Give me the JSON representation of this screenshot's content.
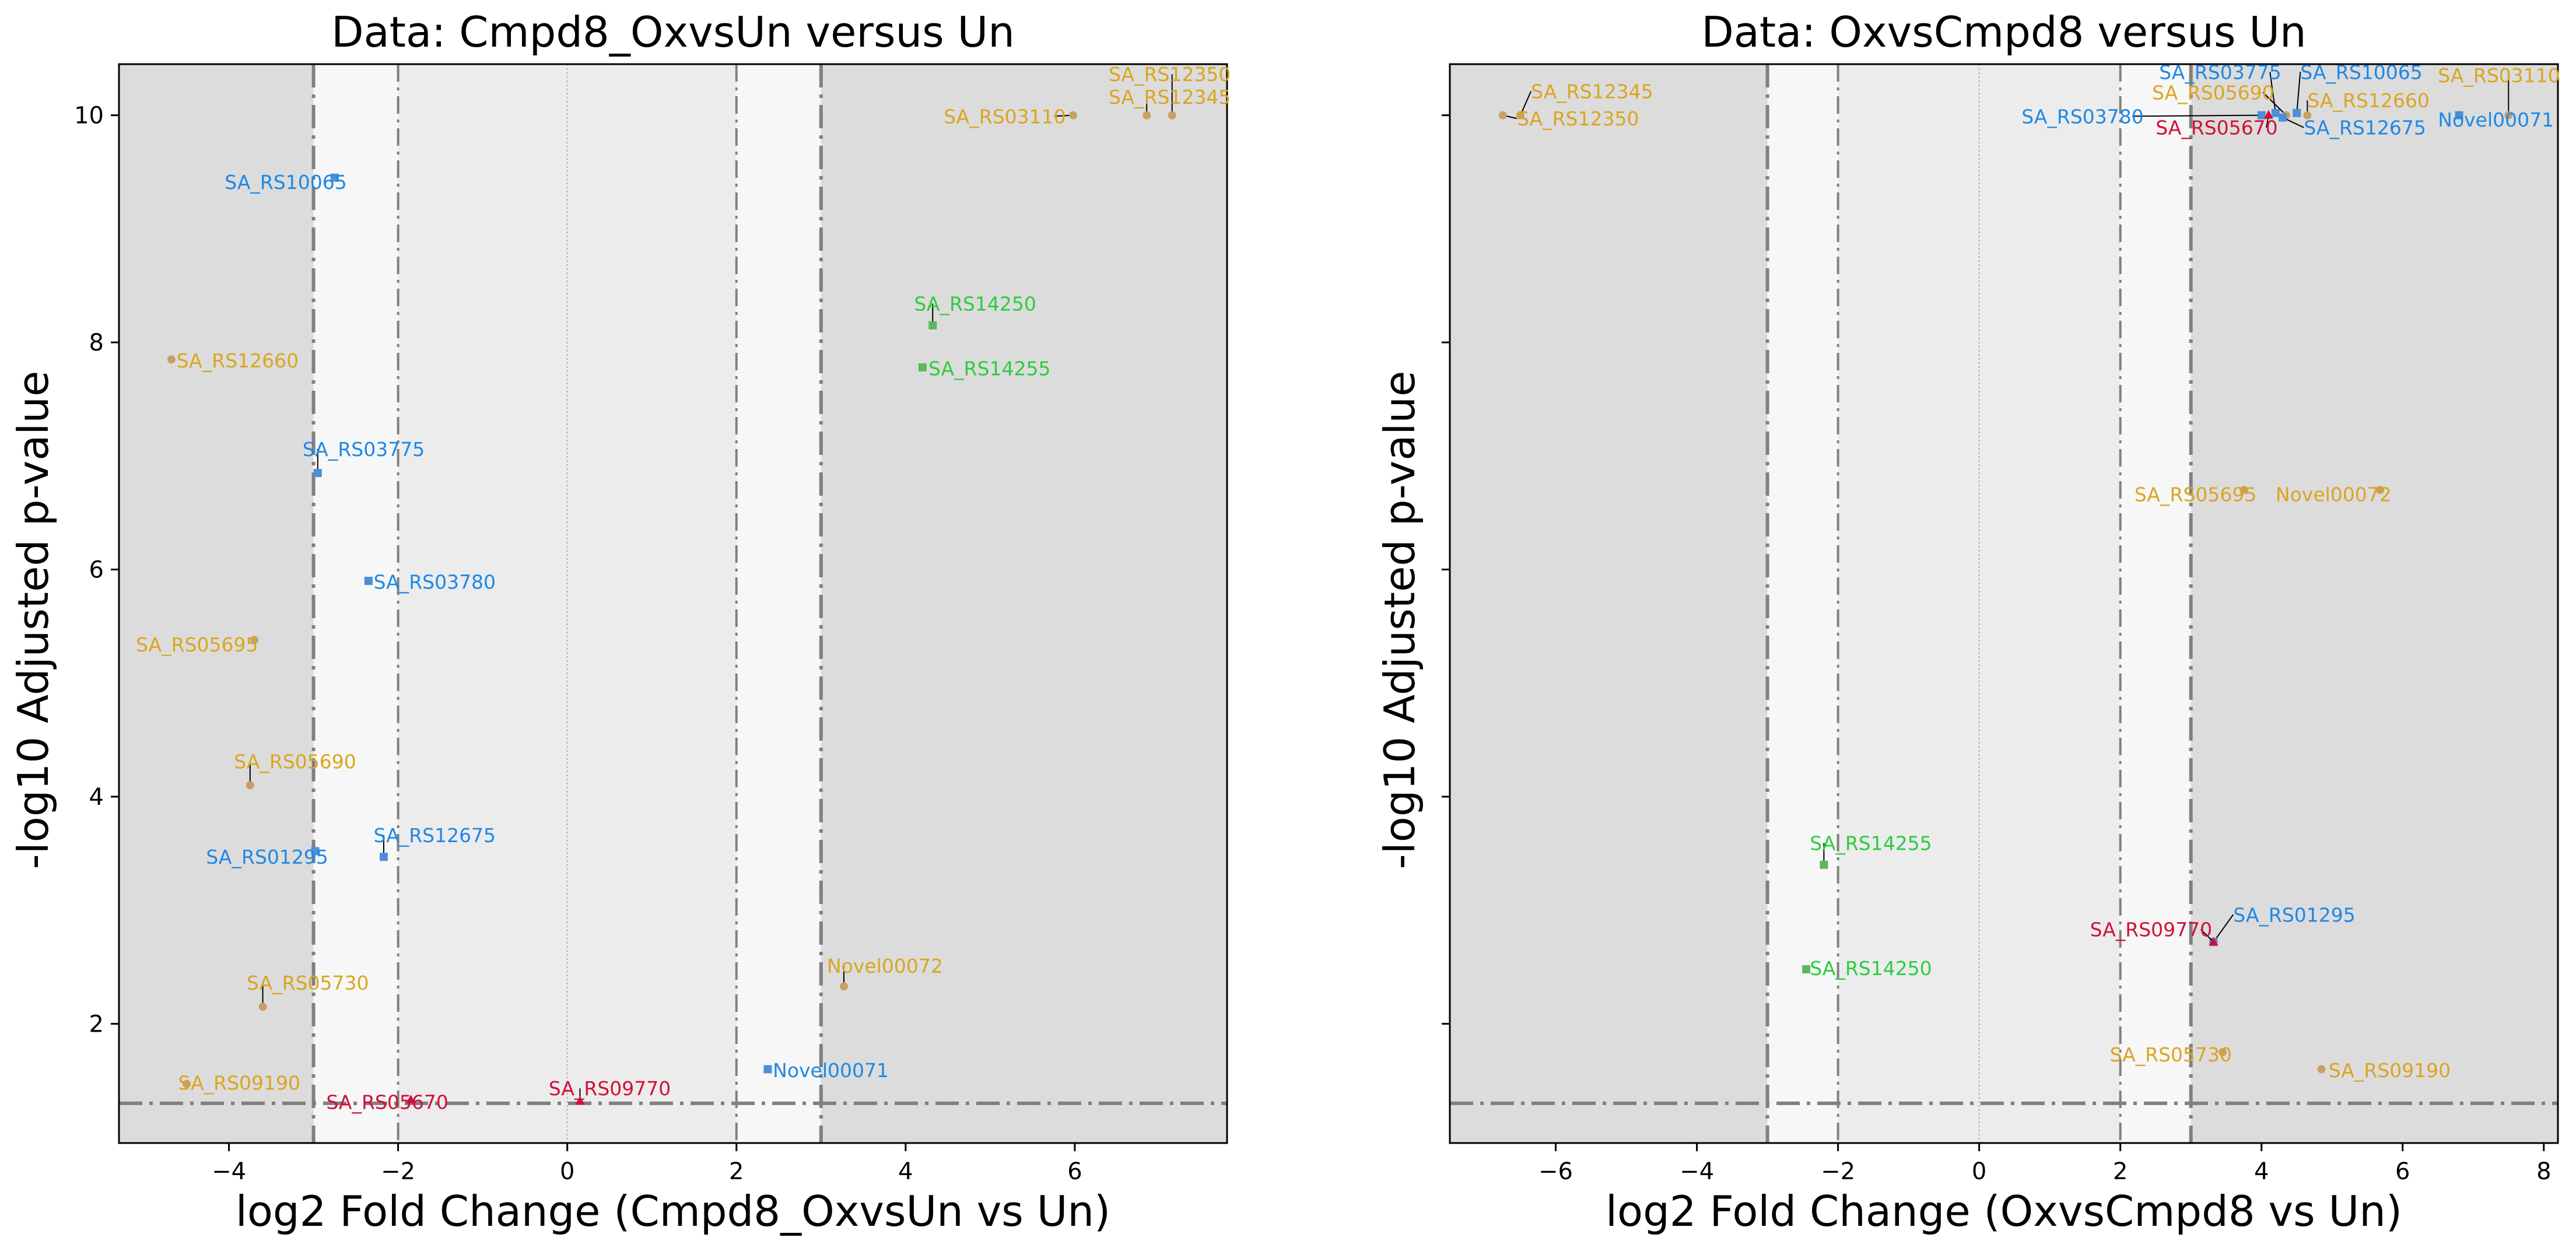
{
  "colors": {
    "outer_band": "#dcdcdc",
    "mid_band": "#f7f7f7",
    "inner_band": "#ececec",
    "threshold_line": "#808080",
    "zero_line": "#b0b0b0",
    "orange": "#DAA520",
    "orange_marker": "#C8A064",
    "blue": "#1E88E5",
    "blue_marker": "#4A90D9",
    "green": "#2ECC40",
    "green_marker": "#5CB85C",
    "red": "#D0103A"
  },
  "chart_data": [
    {
      "type": "scatter",
      "title": "Data: Cmpd8_OxvsUn versus Un",
      "xlabel": "log2 Fold Change (Cmpd8_OxvsUn vs Un)",
      "ylabel": "-log10 Adjusted p-value",
      "xlim": [
        -5.3,
        7.8
      ],
      "ylim": [
        0.95,
        10.45
      ],
      "xticks": [
        -4,
        -2,
        0,
        2,
        4,
        6
      ],
      "yticks": [
        2,
        4,
        6,
        8,
        10
      ],
      "show_ytick_labels": true,
      "vlines_outer": [
        -3,
        3
      ],
      "vlines_inner": [
        -2,
        2
      ],
      "hline": 1.3,
      "points": [
        {
          "label": "SA_RS12350",
          "x": 7.15,
          "y": 10.0,
          "color": "orange",
          "marker": "circle",
          "lx": 6.4,
          "ly": 10.3
        },
        {
          "label": "SA_RS12345",
          "x": 6.85,
          "y": 10.0,
          "color": "orange",
          "marker": "circle",
          "lx": 6.4,
          "ly": 10.1
        },
        {
          "label": "SA_RS03110",
          "x": 5.98,
          "y": 10.0,
          "color": "orange",
          "marker": "circle",
          "lx": 4.45,
          "ly": 9.93
        },
        {
          "label": "SA_RS10065",
          "x": -2.75,
          "y": 9.45,
          "color": "blue",
          "marker": "square",
          "lx": -4.05,
          "ly": 9.35
        },
        {
          "label": "SA_RS14250",
          "x": 4.32,
          "y": 8.15,
          "color": "green",
          "marker": "square",
          "lx": 4.1,
          "ly": 8.28
        },
        {
          "label": "SA_RS14255",
          "x": 4.2,
          "y": 7.78,
          "color": "green",
          "marker": "square",
          "lx": 4.27,
          "ly": 7.71
        },
        {
          "label": "SA_RS12660",
          "x": -4.68,
          "y": 7.85,
          "color": "orange",
          "marker": "circle",
          "lx": -4.62,
          "ly": 7.78
        },
        {
          "label": "SA_RS03775",
          "x": -2.95,
          "y": 6.85,
          "color": "blue",
          "marker": "square",
          "lx": -3.13,
          "ly": 7.0
        },
        {
          "label": "SA_RS03780",
          "x": -2.35,
          "y": 5.9,
          "color": "blue",
          "marker": "square",
          "lx": -2.29,
          "ly": 5.83
        },
        {
          "label": "SA_RS05695",
          "x": -3.7,
          "y": 5.38,
          "color": "orange",
          "marker": "circle",
          "lx": -5.1,
          "ly": 5.28
        },
        {
          "label": "SA_RS05690",
          "x": -3.75,
          "y": 4.1,
          "color": "orange",
          "marker": "circle",
          "lx": -3.94,
          "ly": 4.25
        },
        {
          "label": "SA_RS01295",
          "x": -2.98,
          "y": 3.52,
          "color": "blue",
          "marker": "square",
          "lx": -4.27,
          "ly": 3.41
        },
        {
          "label": "SA_RS12675",
          "x": -2.17,
          "y": 3.47,
          "color": "blue",
          "marker": "square",
          "lx": -2.29,
          "ly": 3.6
        },
        {
          "label": "Novel00072",
          "x": 3.27,
          "y": 2.33,
          "color": "orange",
          "marker": "circle",
          "lx": 3.07,
          "ly": 2.45
        },
        {
          "label": "SA_RS05730",
          "x": -3.6,
          "y": 2.15,
          "color": "orange",
          "marker": "circle",
          "lx": -3.79,
          "ly": 2.3
        },
        {
          "label": "Novel00071",
          "x": 2.37,
          "y": 1.6,
          "color": "blue",
          "marker": "square",
          "lx": 2.43,
          "ly": 1.53
        },
        {
          "label": "SA_RS09190",
          "x": -4.5,
          "y": 1.47,
          "color": "orange",
          "marker": "circle",
          "lx": -4.6,
          "ly": 1.42
        },
        {
          "label": "SA_RS09770",
          "x": 0.15,
          "y": 1.32,
          "color": "red",
          "marker": "triangle",
          "lx": -0.22,
          "ly": 1.37
        },
        {
          "label": "SA_RS05670",
          "x": -1.85,
          "y": 1.33,
          "color": "red",
          "marker": "triangle",
          "lx": -2.85,
          "ly": 1.25
        }
      ]
    },
    {
      "type": "scatter",
      "title": "Data: OxvsCmpd8 versus Un",
      "xlabel": "log2 Fold Change (OxvsCmpd8 vs Un)",
      "ylabel": "-log10 Adjusted p-value",
      "xlim": [
        -7.5,
        8.2
      ],
      "ylim": [
        0.95,
        10.45
      ],
      "xticks": [
        -6,
        -4,
        -2,
        0,
        2,
        4,
        6,
        8
      ],
      "yticks": [
        2,
        4,
        6,
        8,
        10
      ],
      "show_ytick_labels": false,
      "vlines_outer": [
        -3,
        3
      ],
      "vlines_inner": [
        -2,
        2
      ],
      "hline": 1.3,
      "points": [
        {
          "label": "SA_RS12345",
          "x": -6.5,
          "y": 10.0,
          "color": "orange",
          "marker": "circle",
          "lx": -6.35,
          "ly": 10.15
        },
        {
          "label": "SA_RS12350",
          "x": -6.75,
          "y": 10.0,
          "color": "orange",
          "marker": "circle",
          "lx": -6.55,
          "ly": 9.91
        },
        {
          "label": "SA_RS03775",
          "x": 4.2,
          "y": 10.02,
          "color": "blue",
          "marker": "square",
          "lx": 2.55,
          "ly": 10.32
        },
        {
          "label": "SA_RS10065",
          "x": 4.5,
          "y": 10.02,
          "color": "blue",
          "marker": "square",
          "lx": 4.55,
          "ly": 10.32
        },
        {
          "label": "SA_RS03110",
          "x": 7.5,
          "y": 10.0,
          "color": "orange",
          "marker": "circle",
          "lx": 6.5,
          "ly": 10.29
        },
        {
          "label": "SA_RS05690",
          "x": 4.35,
          "y": 10.0,
          "color": "orange",
          "marker": "circle",
          "lx": 2.45,
          "ly": 10.14
        },
        {
          "label": "SA_RS12660",
          "x": 4.65,
          "y": 10.0,
          "color": "orange",
          "marker": "circle",
          "lx": 4.65,
          "ly": 10.07
        },
        {
          "label": "SA_RS03780",
          "x": 4.0,
          "y": 10.0,
          "color": "blue",
          "marker": "square",
          "lx": 0.6,
          "ly": 9.93
        },
        {
          "label": "SA_RS05670",
          "x": 4.1,
          "y": 10.0,
          "color": "red",
          "marker": "triangle",
          "lx": 2.5,
          "ly": 9.83
        },
        {
          "label": "SA_RS12675",
          "x": 4.3,
          "y": 9.98,
          "color": "blue",
          "marker": "square",
          "lx": 4.6,
          "ly": 9.83
        },
        {
          "label": "Novel00071",
          "x": 6.8,
          "y": 10.0,
          "color": "blue",
          "marker": "square",
          "lx": 6.5,
          "ly": 9.9
        },
        {
          "label": "SA_RS05695",
          "x": 3.75,
          "y": 6.7,
          "color": "orange",
          "marker": "circle",
          "lx": 2.2,
          "ly": 6.6
        },
        {
          "label": "Novel00072",
          "x": 5.68,
          "y": 6.7,
          "color": "orange",
          "marker": "circle",
          "lx": 4.2,
          "ly": 6.6
        },
        {
          "label": "SA_RS14255",
          "x": -2.2,
          "y": 3.4,
          "color": "green",
          "marker": "square",
          "lx": -2.4,
          "ly": 3.53
        },
        {
          "label": "SA_RS01295",
          "x": 3.32,
          "y": 2.72,
          "color": "blue",
          "marker": "square",
          "lx": 3.6,
          "ly": 2.9
        },
        {
          "label": "SA_RS09770",
          "x": 3.32,
          "y": 2.72,
          "color": "red",
          "marker": "triangle",
          "lx": 1.57,
          "ly": 2.77
        },
        {
          "label": "SA_RS14250",
          "x": -2.45,
          "y": 2.48,
          "color": "green",
          "marker": "square",
          "lx": -2.4,
          "ly": 2.43
        },
        {
          "label": "SA_RS05730",
          "x": 3.45,
          "y": 1.75,
          "color": "orange",
          "marker": "circle",
          "lx": 1.85,
          "ly": 1.67
        },
        {
          "label": "SA_RS09190",
          "x": 4.85,
          "y": 1.6,
          "color": "orange",
          "marker": "circle",
          "lx": 4.95,
          "ly": 1.53
        }
      ]
    }
  ]
}
